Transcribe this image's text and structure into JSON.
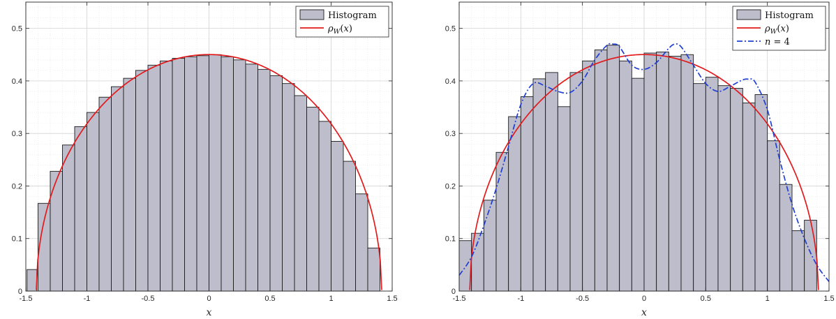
{
  "chart_data": [
    {
      "type": "bar",
      "panel": "left",
      "xlabel": "x",
      "ylabel": "",
      "xlim": [
        -1.5,
        1.5
      ],
      "ylim": [
        0,
        0.55
      ],
      "xticks": [
        -1.5,
        -1,
        -0.5,
        0,
        0.5,
        1,
        1.5
      ],
      "xtick_labels": [
        "-1.5",
        "-1",
        "-0.5",
        "0",
        "0.5",
        "1",
        "1.5"
      ],
      "yticks": [
        0,
        0.1,
        0.2,
        0.3,
        0.4,
        0.5
      ],
      "ytick_labels": [
        "0",
        "0.1",
        "0.2",
        "0.3",
        "0.4",
        "0.5"
      ],
      "grid": "on",
      "legend_position": "top-right",
      "legend": [
        "Histogram",
        "ρW(x)"
      ],
      "bin_width": 0.1,
      "histogram": {
        "bin_centers": [
          -1.35,
          -1.25,
          -1.15,
          -1.05,
          -0.95,
          -0.85,
          -0.75,
          -0.65,
          -0.55,
          -0.45,
          -0.35,
          -0.25,
          -0.15,
          -0.05,
          0.05,
          0.15,
          0.25,
          0.35,
          0.45,
          0.55,
          0.65,
          0.75,
          0.85,
          0.95,
          1.05,
          1.15,
          1.25,
          1.35
        ],
        "values": [
          0.167,
          0.228,
          0.278,
          0.313,
          0.34,
          0.369,
          0.389,
          0.405,
          0.42,
          0.43,
          0.438,
          0.443,
          0.446,
          0.448,
          0.45,
          0.446,
          0.44,
          0.432,
          0.422,
          0.41,
          0.395,
          0.372,
          0.35,
          0.323,
          0.285,
          0.247,
          0.185,
          0.082
        ],
        "edge_bins": [
          {
            "x": -1.45,
            "value": 0.041
          }
        ]
      },
      "curves": [
        {
          "name": "ρW(x)",
          "formula": "sqrt(2 - x^2) / pi",
          "domain": [
            -1.4142,
            1.4142
          ],
          "color": "#e31a1c"
        }
      ]
    },
    {
      "type": "bar",
      "panel": "right",
      "xlabel": "x",
      "ylabel": "",
      "xlim": [
        -1.5,
        1.5
      ],
      "ylim": [
        0,
        0.55
      ],
      "xticks": [
        -1.5,
        -1,
        -0.5,
        0,
        0.5,
        1,
        1.5
      ],
      "xtick_labels": [
        "-1.5",
        "-1",
        "-0.5",
        "0",
        "0.5",
        "1",
        "1.5"
      ],
      "yticks": [
        0,
        0.1,
        0.2,
        0.3,
        0.4,
        0.5
      ],
      "ytick_labels": [
        "0",
        "0.1",
        "0.2",
        "0.3",
        "0.4",
        "0.5"
      ],
      "grid": "on",
      "legend_position": "top-right",
      "legend": [
        "Histogram",
        "ρW(x)",
        "n = 4"
      ],
      "bin_width": 0.1,
      "histogram": {
        "bin_centers": [
          -1.45,
          -1.35,
          -1.25,
          -1.15,
          -1.05,
          -0.95,
          -0.85,
          -0.75,
          -0.65,
          -0.55,
          -0.45,
          -0.35,
          -0.25,
          -0.15,
          -0.05,
          0.05,
          0.15,
          0.25,
          0.35,
          0.45,
          0.55,
          0.65,
          0.75,
          0.85,
          0.95,
          1.05,
          1.15,
          1.25,
          1.35,
          1.45
        ],
        "values": [
          0.096,
          0.11,
          0.173,
          0.264,
          0.332,
          0.37,
          0.404,
          0.416,
          0.351,
          0.416,
          0.438,
          0.459,
          0.468,
          0.438,
          0.405,
          0.453,
          0.455,
          0.447,
          0.45,
          0.395,
          0.407,
          0.391,
          0.386,
          0.358,
          0.374,
          0.286,
          0.203,
          0.115,
          0.135,
          0.0
        ]
      },
      "curves": [
        {
          "name": "ρW(x)",
          "formula": "sqrt(2 - x^2) / pi",
          "domain": [
            -1.4142,
            1.4142
          ],
          "color": "#e31a1c"
        },
        {
          "name": "n = 4",
          "style": "dash-dot",
          "color": "#1f3fd4",
          "x": [
            -1.5,
            -1.4,
            -1.3,
            -1.2,
            -1.1,
            -1.0,
            -0.9,
            -0.8,
            -0.7,
            -0.6,
            -0.5,
            -0.4,
            -0.3,
            -0.25,
            -0.2,
            -0.1,
            0.0,
            0.1,
            0.2,
            0.25,
            0.3,
            0.4,
            0.5,
            0.6,
            0.7,
            0.8,
            0.85,
            0.9,
            1.0,
            1.1,
            1.2,
            1.3,
            1.4,
            1.5
          ],
          "y": [
            0.03,
            0.065,
            0.125,
            0.195,
            0.275,
            0.355,
            0.395,
            0.39,
            0.38,
            0.378,
            0.4,
            0.44,
            0.468,
            0.47,
            0.465,
            0.43,
            0.422,
            0.435,
            0.462,
            0.47,
            0.465,
            0.43,
            0.395,
            0.38,
            0.39,
            0.402,
            0.403,
            0.398,
            0.345,
            0.25,
            0.165,
            0.1,
            0.05,
            0.018
          ]
        }
      ]
    }
  ]
}
